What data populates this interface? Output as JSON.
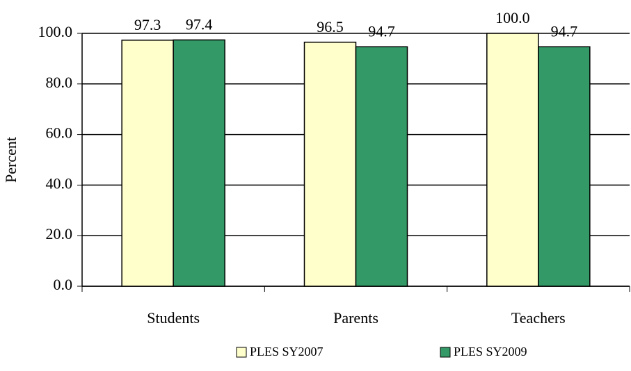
{
  "chart_data": {
    "type": "bar",
    "ylabel": "Percent",
    "categories": [
      "Students",
      "Parents",
      "Teachers"
    ],
    "series": [
      {
        "name": "PLES SY2007",
        "color": "#ffffcc",
        "values": [
          97.3,
          96.5,
          100.0
        ],
        "value_labels": [
          "97.3",
          "96.5",
          "100.0"
        ]
      },
      {
        "name": "PLES SY2009",
        "color": "#339966",
        "values": [
          97.4,
          94.7,
          94.7
        ],
        "value_labels": [
          "97.4",
          "94.7",
          "94.7"
        ]
      }
    ],
    "ylim": [
      0,
      100
    ],
    "yticks": [
      {
        "value": 0,
        "label": "0.0"
      },
      {
        "value": 20,
        "label": "20.0"
      },
      {
        "value": 40,
        "label": "40.0"
      },
      {
        "value": 60,
        "label": "60.0"
      },
      {
        "value": 80,
        "label": "80.0"
      },
      {
        "value": 100,
        "label": "100.0"
      }
    ],
    "grid": true,
    "legend": "bottom"
  }
}
